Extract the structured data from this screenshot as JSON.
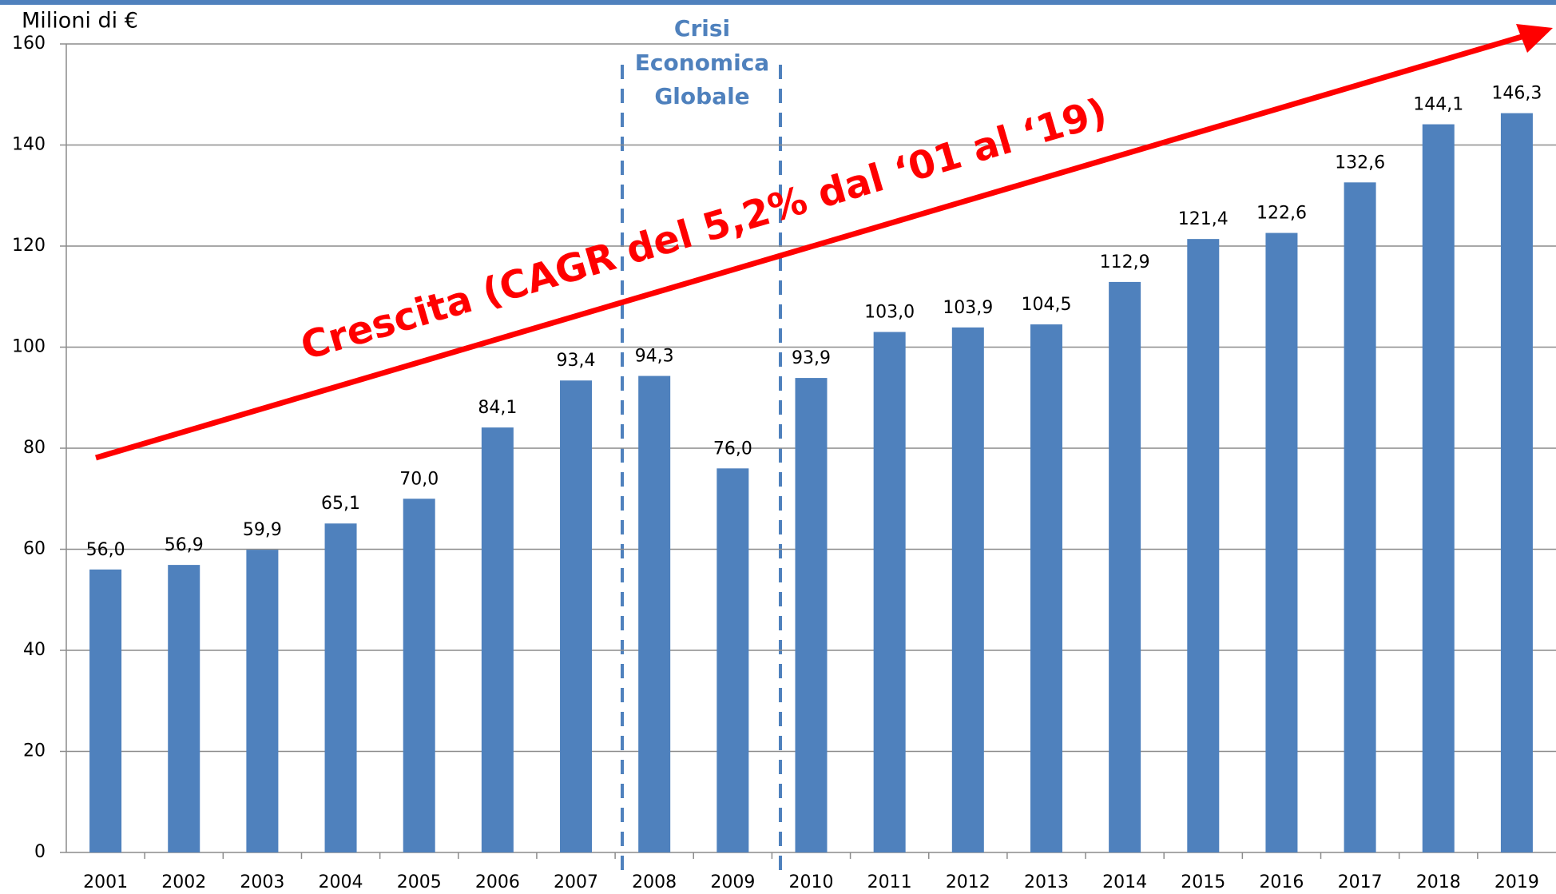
{
  "chart_data": {
    "type": "bar",
    "y_label": "Milioni di €",
    "annotations": {
      "crisis": [
        "Crisi",
        "Economica",
        "Globale"
      ],
      "growth": "Crescita (CAGR del 5,2% dal ‘01 al ‘19)"
    },
    "categories": [
      "2001",
      "2002",
      "2003",
      "2004",
      "2005",
      "2006",
      "2007",
      "2008",
      "2009",
      "2010",
      "2011",
      "2012",
      "2013",
      "2014",
      "2015",
      "2016",
      "2017",
      "2018",
      "2019"
    ],
    "values": [
      56.0,
      56.9,
      59.9,
      65.1,
      70.0,
      84.1,
      93.4,
      94.3,
      76.0,
      93.9,
      103.0,
      103.9,
      104.5,
      112.9,
      121.4,
      122.6,
      132.6,
      144.1,
      146.3
    ],
    "value_labels": [
      "56,0",
      "56,9",
      "59,9",
      "65,1",
      "70,0",
      "84,1",
      "93,4",
      "94,3",
      "76,0",
      "93,9",
      "103,0",
      "103,9",
      "104,5",
      "112,9",
      "121,4",
      "122,6",
      "132,6",
      "144,1",
      "146,3"
    ],
    "color": "#4f81bd",
    "ylim": [
      0,
      160
    ],
    "yticks": [
      0,
      20,
      40,
      60,
      80,
      100,
      120,
      140,
      160
    ],
    "grid": true
  }
}
